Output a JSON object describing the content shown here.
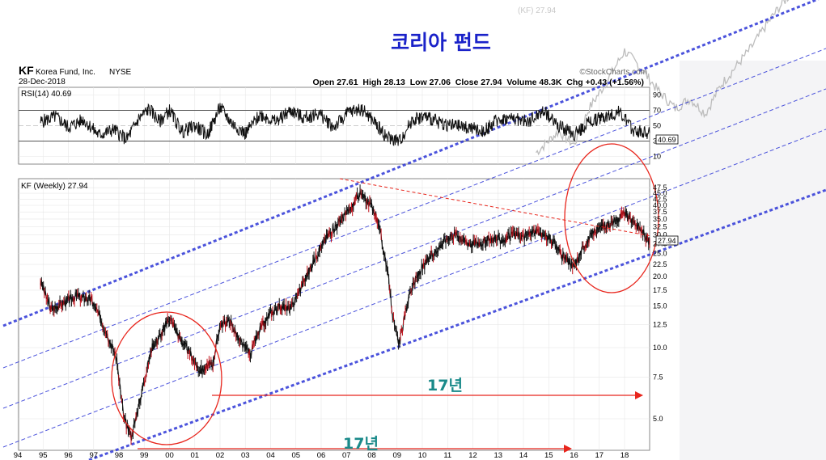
{
  "title": "코리아 펀드",
  "header": {
    "symbol": "KF",
    "name": "Korea Fund, Inc.",
    "exchange": "NYSE",
    "date": "28-Dec-2018",
    "watermark": "©StockCharts.com",
    "ohlc": "Open 27.61  High 28.13  Low 27.06  Close 27.94  Volume 48.3K  Chg +0.43 (+1.56%)"
  },
  "rsi_panel": {
    "label": "RSI(14) 40.69",
    "value_box": "40.69",
    "ticks": [
      "90",
      "70",
      "50",
      "30",
      "10"
    ]
  },
  "price_panel": {
    "label": "KF (Weekly) 27.94",
    "value_box": "27.94",
    "ticks": [
      "47.5",
      "45.0",
      "42.5",
      "40.0",
      "37.5",
      "35.0",
      "32.5",
      "30.0",
      "27.5",
      "25.0",
      "22.5",
      "20.0",
      "17.5",
      "15.0",
      "12.5",
      "10.0",
      "7.5",
      "5.0"
    ]
  },
  "annotations": {
    "span_upper": "17년",
    "span_lower": "17년"
  },
  "x_axis": {
    "labels": [
      "94",
      "95",
      "96",
      "97",
      "98",
      "99",
      "00",
      "01",
      "02",
      "03",
      "04",
      "05",
      "06",
      "07",
      "08",
      "09",
      "10",
      "11",
      "12",
      "13",
      "14",
      "15",
      "16",
      "17",
      "18"
    ]
  },
  "ghost_label": "(KF) 27.94",
  "colors": {
    "title": "#1a22c9",
    "channel": "#2b35d6",
    "annotation_red": "#e8251c",
    "span_text": "#1a8a8a",
    "price_bar": "#111111",
    "price_down": "#c0101a"
  },
  "chart_data": {
    "type": "line",
    "x_unit": "year",
    "y_scale": "log",
    "series": [
      {
        "x": [
          1994.9,
          1995.3,
          1995.8,
          1996.3,
          1996.9,
          1997.3,
          1997.6,
          1997.9,
          1998.2,
          1998.5,
          1998.9,
          1999.3,
          1999.7,
          2000.0,
          2000.4,
          2000.8,
          2001.2,
          2001.7,
          2002.0,
          2002.4,
          2002.8,
          2003.2,
          2003.6,
          2004.0,
          2004.4,
          2004.8,
          2005.2,
          2005.6,
          2006.0,
          2006.4,
          2006.8,
          2007.2,
          2007.5,
          2007.9,
          2008.2,
          2008.6,
          2008.9,
          2009.1,
          2009.5,
          2009.9,
          2010.3,
          2010.7,
          2011.1,
          2011.4,
          2011.7,
          2012.0,
          2012.4,
          2012.8,
          2013.2,
          2013.6,
          2014.0,
          2014.4,
          2014.8,
          2015.2,
          2015.6,
          2016.0,
          2016.4,
          2016.8,
          2017.2,
          2017.6,
          2018.0,
          2018.4,
          2018.8,
          2018.99
        ],
        "y": [
          19.0,
          14.5,
          15.5,
          16.5,
          16.0,
          13.0,
          11.0,
          9.0,
          5.0,
          4.2,
          6.5,
          10.0,
          11.5,
          13.5,
          11.0,
          9.5,
          8.0,
          8.5,
          12.5,
          13.0,
          10.5,
          9.5,
          12.0,
          14.0,
          15.0,
          14.5,
          18.0,
          22.0,
          27.0,
          31.0,
          35.0,
          39.0,
          45.0,
          41.0,
          36.0,
          22.0,
          12.0,
          10.5,
          17.0,
          21.0,
          24.0,
          27.0,
          30.0,
          30.0,
          28.0,
          27.5,
          28.0,
          29.0,
          28.5,
          30.0,
          29.5,
          31.0,
          30.0,
          28.0,
          24.0,
          22.0,
          27.0,
          31.0,
          33.0,
          34.0,
          37.0,
          34.0,
          30.0,
          27.94
        ]
      }
    ],
    "rsi": {
      "x": [
        1994.9,
        1995.5,
        1996.0,
        1996.6,
        1997.2,
        1997.8,
        1998.3,
        1998.8,
        1999.2,
        1999.6,
        2000.0,
        2000.5,
        2001.0,
        2001.5,
        2002.0,
        2002.5,
        2003.0,
        2003.6,
        2004.2,
        2004.8,
        2005.3,
        2005.9,
        2006.5,
        2007.1,
        2007.6,
        2008.1,
        2008.6,
        2009.1,
        2009.6,
        2010.1,
        2010.6,
        2011.2,
        2011.8,
        2012.4,
        2013.0,
        2013.6,
        2014.2,
        2014.8,
        2015.4,
        2016.0,
        2016.6,
        2017.2,
        2017.8,
        2018.3,
        2018.99
      ],
      "y": [
        55,
        62,
        48,
        58,
        38,
        45,
        32,
        60,
        72,
        55,
        70,
        42,
        50,
        38,
        74,
        52,
        40,
        65,
        55,
        70,
        60,
        66,
        48,
        68,
        72,
        55,
        35,
        30,
        58,
        62,
        55,
        50,
        48,
        42,
        58,
        60,
        55,
        70,
        50,
        38,
        55,
        62,
        68,
        45,
        40.69
      ]
    }
  }
}
